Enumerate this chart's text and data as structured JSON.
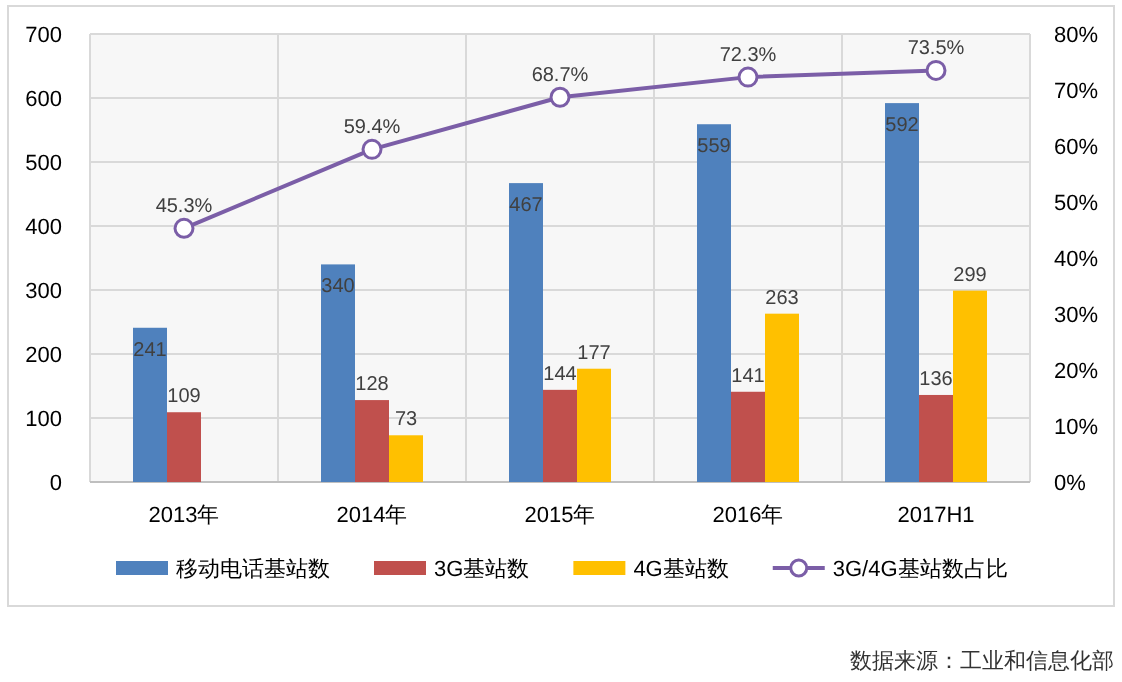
{
  "chart_data": {
    "type": "bar",
    "categories": [
      "2013年",
      "2014年",
      "2015年",
      "2016年",
      "2017H1"
    ],
    "series": [
      {
        "name": "移动电话基站数",
        "color": "#4f81bd",
        "values": [
          241,
          340,
          467,
          559,
          592
        ]
      },
      {
        "name": "3G基站数",
        "color": "#c0504d",
        "values": [
          109,
          128,
          144,
          141,
          136
        ]
      },
      {
        "name": "4G基站数",
        "color": "#ffc000",
        "values": [
          null,
          73,
          177,
          263,
          299
        ]
      },
      {
        "name": "3G/4G基站数占比",
        "type": "line",
        "axis": "y2",
        "color": "#7b5ea7",
        "marker": "circle",
        "values": [
          45.3,
          59.4,
          68.7,
          72.3,
          73.5
        ],
        "value_labels": [
          "45.3%",
          "59.4%",
          "68.7%",
          "72.3%",
          "73.5%"
        ]
      }
    ],
    "ylim": [
      0,
      700
    ],
    "yticks": [
      0,
      100,
      200,
      300,
      400,
      500,
      600,
      700
    ],
    "y2lim": [
      0,
      80
    ],
    "y2ticks": [
      {
        "value": 0,
        "label": "0%"
      },
      {
        "value": 10,
        "label": "10%"
      },
      {
        "value": 20,
        "label": "20%"
      },
      {
        "value": 30,
        "label": "30%"
      },
      {
        "value": 40,
        "label": "40%"
      },
      {
        "value": 50,
        "label": "50%"
      },
      {
        "value": 60,
        "label": "60%"
      },
      {
        "value": 70,
        "label": "70%"
      },
      {
        "value": 80,
        "label": "80%"
      }
    ],
    "data_labels": true,
    "grid": true,
    "legend": "bottom",
    "annotations": [
      "数据来源：工业和信息化部"
    ]
  }
}
